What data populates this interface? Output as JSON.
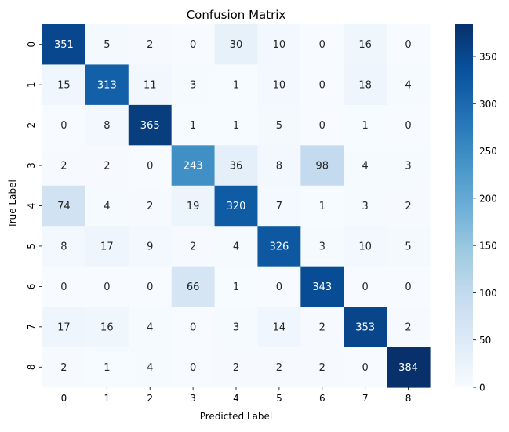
{
  "chart_data": {
    "type": "heatmap",
    "title": "Confusion Matrix",
    "xlabel": "Predicted Label",
    "ylabel": "True Label",
    "x_categories": [
      "0",
      "1",
      "2",
      "3",
      "4",
      "5",
      "6",
      "7",
      "8"
    ],
    "y_categories": [
      "0",
      "1",
      "2",
      "3",
      "4",
      "5",
      "6",
      "7",
      "8"
    ],
    "values": [
      [
        351,
        5,
        2,
        0,
        30,
        10,
        0,
        16,
        0
      ],
      [
        15,
        313,
        11,
        3,
        1,
        10,
        0,
        18,
        4
      ],
      [
        0,
        8,
        365,
        1,
        1,
        5,
        0,
        1,
        0
      ],
      [
        2,
        2,
        0,
        243,
        36,
        8,
        98,
        4,
        3
      ],
      [
        74,
        4,
        2,
        19,
        320,
        7,
        1,
        3,
        2
      ],
      [
        8,
        17,
        9,
        2,
        4,
        326,
        3,
        10,
        5
      ],
      [
        0,
        0,
        0,
        66,
        1,
        0,
        343,
        0,
        0
      ],
      [
        17,
        16,
        4,
        0,
        3,
        14,
        2,
        353,
        2
      ],
      [
        2,
        1,
        4,
        0,
        2,
        2,
        2,
        0,
        384
      ]
    ],
    "colormap": "Blues",
    "colorbar": {
      "min": 0,
      "max": 384,
      "ticks": [
        0,
        50,
        100,
        150,
        200,
        250,
        300,
        350
      ]
    },
    "colors": {
      "low": "#f7fbff",
      "high": "#08306b",
      "text_dark": "#262626",
      "text_light": "#ffffff"
    }
  }
}
